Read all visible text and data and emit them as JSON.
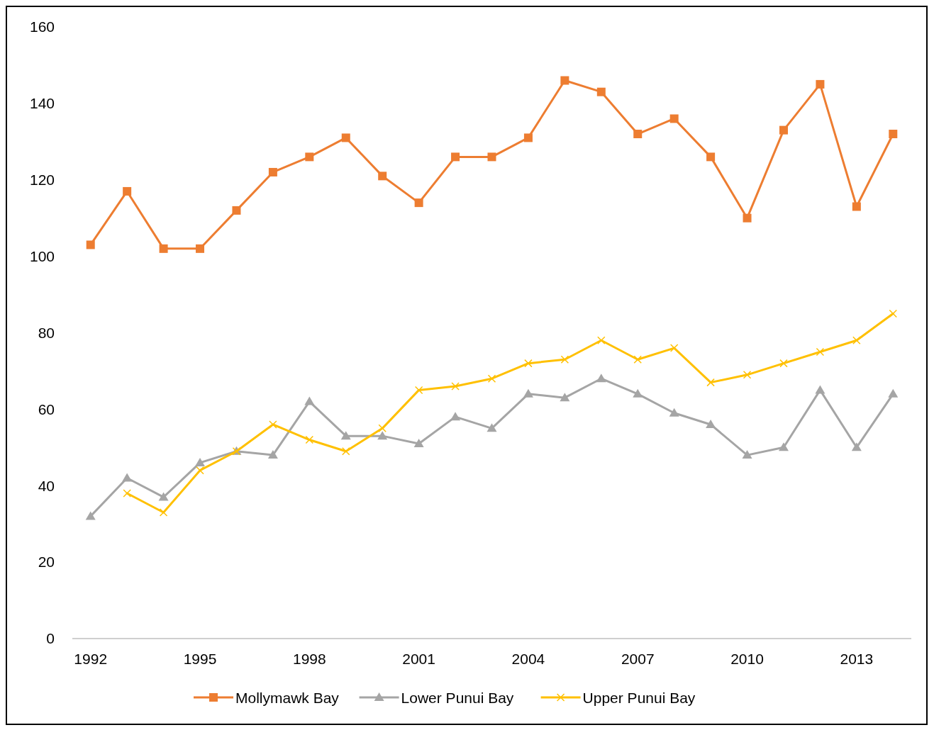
{
  "chart_data": {
    "type": "line",
    "x": [
      1992,
      1993,
      1994,
      1995,
      1996,
      1997,
      1998,
      1999,
      2000,
      2001,
      2002,
      2003,
      2004,
      2005,
      2006,
      2007,
      2008,
      2009,
      2010,
      2011,
      2012,
      2013,
      2014
    ],
    "xlim": [
      1991.5,
      2014.5
    ],
    "xticks": [
      1992,
      1995,
      1998,
      2001,
      2004,
      2007,
      2010,
      2013
    ],
    "ylim": [
      0,
      160
    ],
    "yticks": [
      0,
      20,
      40,
      60,
      80,
      100,
      120,
      140,
      160
    ],
    "grid": false,
    "legend": "bottom",
    "series": [
      {
        "name": "Mollymawk Bay",
        "color": "#ed7d31",
        "marker": "square",
        "values": [
          103,
          117,
          102,
          102,
          112,
          122,
          126,
          131,
          121,
          114,
          126,
          126,
          131,
          146,
          143,
          132,
          136,
          126,
          110,
          133,
          145,
          113,
          132
        ]
      },
      {
        "name": "Lower Punui Bay",
        "color": "#a5a5a5",
        "marker": "triangle",
        "values": [
          32,
          42,
          37,
          46,
          49,
          48,
          62,
          53,
          53,
          51,
          58,
          55,
          64,
          63,
          68,
          64,
          59,
          56,
          48,
          50,
          65,
          50,
          64
        ]
      },
      {
        "name": "Upper Punui Bay",
        "color": "#ffc000",
        "marker": "cross",
        "values": [
          null,
          38,
          33,
          44,
          49,
          56,
          52,
          49,
          55,
          65,
          66,
          68,
          72,
          73,
          78,
          73,
          76,
          67,
          69,
          72,
          75,
          78,
          85
        ]
      }
    ]
  }
}
